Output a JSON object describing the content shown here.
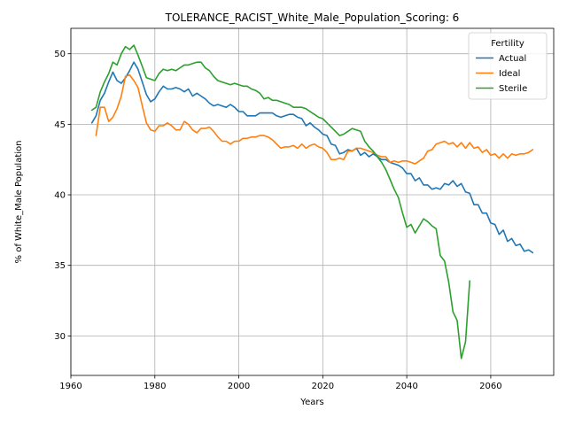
{
  "chart_data": {
    "type": "line",
    "title": "TOLERANCE_RACIST_White_Male_Population_Scoring: 6",
    "xlabel": "Years",
    "ylabel": "% of White_Male Population",
    "xlim": [
      1960,
      2075
    ],
    "ylim": [
      27.2,
      51.8
    ],
    "xticks": [
      1960,
      1980,
      2000,
      2020,
      2040,
      2060
    ],
    "yticks": [
      30,
      35,
      40,
      45,
      50
    ],
    "grid": true,
    "legend": {
      "title": "Fertility",
      "placement": "top-right"
    },
    "series": [
      {
        "name": "Actual",
        "color": "#1f77b4",
        "x": [
          1965,
          1966,
          1967,
          1968,
          1969,
          1970,
          1971,
          1972,
          1973,
          1974,
          1975,
          1976,
          1977,
          1978,
          1979,
          1980,
          1981,
          1982,
          1983,
          1984,
          1985,
          1986,
          1987,
          1988,
          1989,
          1990,
          1991,
          1992,
          1993,
          1994,
          1995,
          1996,
          1997,
          1998,
          1999,
          2000,
          2001,
          2002,
          2003,
          2004,
          2005,
          2006,
          2007,
          2008,
          2009,
          2010,
          2011,
          2012,
          2013,
          2014,
          2015,
          2016,
          2017,
          2018,
          2019,
          2020,
          2021,
          2022,
          2023,
          2024,
          2025,
          2026,
          2027,
          2028,
          2029,
          2030,
          2031,
          2032,
          2033,
          2034,
          2035,
          2036,
          2037,
          2038,
          2039,
          2040,
          2041,
          2042,
          2043,
          2044,
          2045,
          2046,
          2047,
          2048,
          2049,
          2050,
          2051,
          2052,
          2053,
          2054,
          2055,
          2056,
          2057,
          2058,
          2059,
          2060,
          2061,
          2062,
          2063,
          2064,
          2065,
          2066,
          2067,
          2068,
          2069,
          2070
        ],
        "values": [
          45.1,
          45.6,
          46.7,
          47.2,
          48.0,
          48.7,
          48.1,
          47.9,
          48.3,
          48.8,
          49.4,
          48.9,
          48.0,
          47.1,
          46.6,
          46.8,
          47.3,
          47.7,
          47.5,
          47.5,
          47.6,
          47.5,
          47.3,
          47.5,
          47.0,
          47.2,
          47.0,
          46.8,
          46.5,
          46.3,
          46.4,
          46.3,
          46.2,
          46.4,
          46.2,
          45.9,
          45.9,
          45.6,
          45.6,
          45.6,
          45.8,
          45.8,
          45.8,
          45.8,
          45.6,
          45.5,
          45.6,
          45.7,
          45.7,
          45.5,
          45.4,
          44.9,
          45.1,
          44.8,
          44.6,
          44.3,
          44.2,
          43.6,
          43.5,
          42.9,
          43.0,
          43.2,
          43.1,
          43.3,
          42.8,
          43.0,
          42.7,
          42.9,
          42.7,
          42.5,
          42.5,
          42.3,
          42.2,
          42.1,
          41.9,
          41.5,
          41.5,
          41.0,
          41.2,
          40.7,
          40.7,
          40.4,
          40.5,
          40.4,
          40.8,
          40.7,
          41.0,
          40.6,
          40.8,
          40.2,
          40.1,
          39.3,
          39.3,
          38.7,
          38.7,
          38.0,
          37.9,
          37.2,
          37.5,
          36.7,
          36.9,
          36.4,
          36.5,
          36.0,
          36.1,
          35.9
        ]
      },
      {
        "name": "Ideal",
        "color": "#ff7f0e",
        "x": [
          1966,
          1967,
          1968,
          1969,
          1970,
          1971,
          1972,
          1973,
          1974,
          1975,
          1976,
          1977,
          1978,
          1979,
          1980,
          1981,
          1982,
          1983,
          1984,
          1985,
          1986,
          1987,
          1988,
          1989,
          1990,
          1991,
          1992,
          1993,
          1994,
          1995,
          1996,
          1997,
          1998,
          1999,
          2000,
          2001,
          2002,
          2003,
          2004,
          2005,
          2006,
          2007,
          2008,
          2009,
          2010,
          2011,
          2012,
          2013,
          2014,
          2015,
          2016,
          2017,
          2018,
          2019,
          2020,
          2021,
          2022,
          2023,
          2024,
          2025,
          2026,
          2027,
          2028,
          2029,
          2030,
          2031,
          2032,
          2033,
          2034,
          2035,
          2036,
          2037,
          2038,
          2039,
          2040,
          2041,
          2042,
          2043,
          2044,
          2045,
          2046,
          2047,
          2048,
          2049,
          2050,
          2051,
          2052,
          2053,
          2054,
          2055,
          2056,
          2057,
          2058,
          2059,
          2060,
          2061,
          2062,
          2063,
          2064,
          2065,
          2066,
          2067,
          2068,
          2069,
          2070
        ],
        "values": [
          44.2,
          46.2,
          46.2,
          45.2,
          45.5,
          46.1,
          47.0,
          48.4,
          48.5,
          48.1,
          47.6,
          46.3,
          45.1,
          44.6,
          44.5,
          44.9,
          44.9,
          45.1,
          44.9,
          44.6,
          44.6,
          45.2,
          45.0,
          44.6,
          44.4,
          44.7,
          44.7,
          44.8,
          44.5,
          44.1,
          43.8,
          43.8,
          43.6,
          43.8,
          43.8,
          44.0,
          44.0,
          44.1,
          44.1,
          44.2,
          44.2,
          44.1,
          43.9,
          43.6,
          43.3,
          43.4,
          43.4,
          43.5,
          43.3,
          43.6,
          43.3,
          43.5,
          43.6,
          43.4,
          43.3,
          43.0,
          42.5,
          42.5,
          42.6,
          42.5,
          43.1,
          43.1,
          43.3,
          43.3,
          43.2,
          43.1,
          43.0,
          42.8,
          42.7,
          42.7,
          42.3,
          42.4,
          42.3,
          42.4,
          42.4,
          42.3,
          42.2,
          42.4,
          42.6,
          43.1,
          43.2,
          43.6,
          43.7,
          43.8,
          43.6,
          43.7,
          43.4,
          43.7,
          43.3,
          43.7,
          43.3,
          43.4,
          43.0,
          43.2,
          42.8,
          42.9,
          42.6,
          42.9,
          42.6,
          42.9,
          42.8,
          42.9,
          42.9,
          43.0,
          43.2
        ]
      },
      {
        "name": "Sterile",
        "color": "#2ca02c",
        "x": [
          1965,
          1966,
          1967,
          1968,
          1969,
          1970,
          1971,
          1972,
          1973,
          1974,
          1975,
          1976,
          1977,
          1978,
          1979,
          1980,
          1981,
          1982,
          1983,
          1984,
          1985,
          1986,
          1987,
          1988,
          1989,
          1990,
          1991,
          1992,
          1993,
          1994,
          1995,
          1996,
          1997,
          1998,
          1999,
          2000,
          2001,
          2002,
          2003,
          2004,
          2005,
          2006,
          2007,
          2008,
          2009,
          2010,
          2011,
          2012,
          2013,
          2014,
          2015,
          2016,
          2017,
          2018,
          2019,
          2020,
          2021,
          2022,
          2023,
          2024,
          2025,
          2026,
          2027,
          2028,
          2029,
          2030,
          2031,
          2032,
          2033,
          2034,
          2035,
          2036,
          2037,
          2038,
          2039,
          2040,
          2041,
          2042,
          2043,
          2044,
          2045,
          2046,
          2047,
          2048,
          2049,
          2050,
          2051,
          2052,
          2053,
          2054,
          2055
        ],
        "values": [
          46.0,
          46.2,
          47.3,
          48.0,
          48.6,
          49.4,
          49.2,
          50.0,
          50.5,
          50.3,
          50.6,
          49.9,
          49.1,
          48.3,
          48.2,
          48.1,
          48.6,
          48.9,
          48.8,
          48.9,
          48.8,
          49.0,
          49.2,
          49.2,
          49.3,
          49.4,
          49.4,
          49.0,
          48.8,
          48.4,
          48.1,
          48.0,
          47.9,
          47.8,
          47.9,
          47.8,
          47.7,
          47.7,
          47.5,
          47.4,
          47.2,
          46.8,
          46.9,
          46.7,
          46.7,
          46.6,
          46.5,
          46.4,
          46.2,
          46.2,
          46.2,
          46.1,
          45.9,
          45.7,
          45.5,
          45.4,
          45.1,
          44.8,
          44.5,
          44.2,
          44.3,
          44.5,
          44.7,
          44.6,
          44.5,
          43.8,
          43.4,
          43.1,
          42.7,
          42.3,
          41.8,
          41.1,
          40.4,
          39.8,
          38.7,
          37.7,
          37.9,
          37.3,
          37.8,
          38.3,
          38.1,
          37.8,
          37.6,
          35.7,
          35.3,
          33.8,
          31.7,
          31.1,
          28.4,
          29.6,
          33.9
        ]
      }
    ]
  }
}
